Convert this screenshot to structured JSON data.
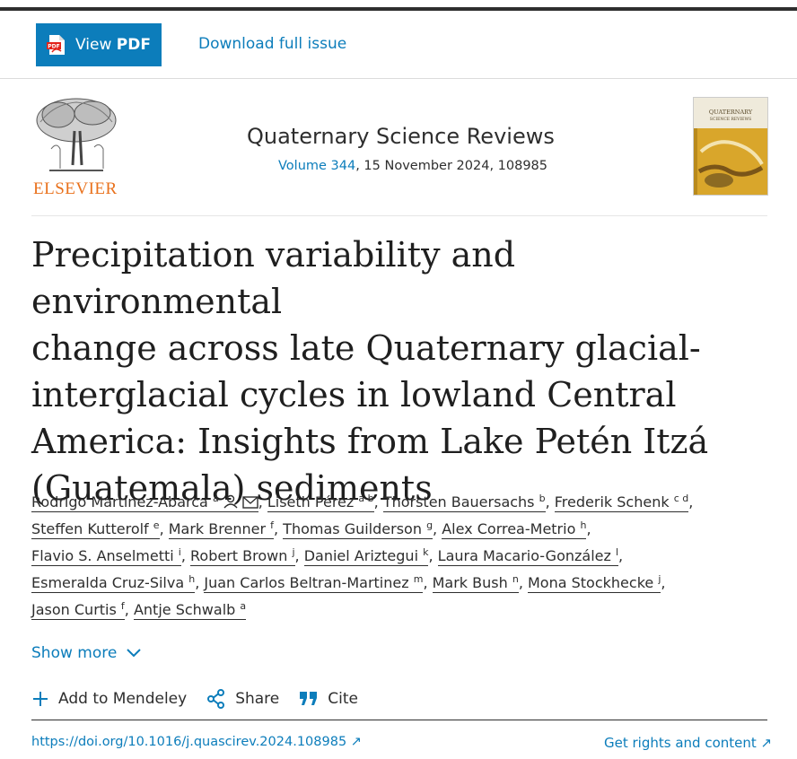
{
  "toolbar": {
    "view_pdf_prefix": "View ",
    "view_pdf_bold": "PDF",
    "download_issue": "Download full issue",
    "pdf_icon": "pdf-file-icon"
  },
  "header": {
    "publisher": "ELSEVIER",
    "journal": "Quaternary Science Reviews",
    "volume_link": "Volume 344",
    "issue_rest": ", 15 November 2024, 108985",
    "cover_title_1": "QUATERNARY",
    "cover_title_2": "SCIENCE REVIEWS"
  },
  "article": {
    "title_lines": [
      "Precipitation variability and environmental",
      "change across late Quaternary glacial-",
      "interglacial cycles in lowland Central",
      "America: Insights from Lake Petén Itzá",
      "(Guatemala) sediments"
    ]
  },
  "authors": [
    {
      "name": "Rodrigo Martínez-Abarca",
      "sup": "a"
    },
    {
      "name": "Liseth Pérez",
      "sup": "a b"
    },
    {
      "name": "Thorsten Bauersachs",
      "sup": "b"
    },
    {
      "name": "Frederik Schenk",
      "sup": "c d"
    },
    {
      "name": "Steffen Kutterolf",
      "sup": "e"
    },
    {
      "name": "Mark Brenner",
      "sup": "f"
    },
    {
      "name": "Thomas Guilderson",
      "sup": "g"
    },
    {
      "name": "Alex Correa-Metrio",
      "sup": "h"
    },
    {
      "name": "Flavio S. Anselmetti",
      "sup": "i"
    },
    {
      "name": "Robert Brown",
      "sup": "j"
    },
    {
      "name": "Daniel Ariztegui",
      "sup": "k"
    },
    {
      "name": "Laura Macario-González",
      "sup": "l"
    },
    {
      "name": "Esmeralda Cruz-Silva",
      "sup": "h"
    },
    {
      "name": "Juan Carlos Beltran-Martinez",
      "sup": "m"
    },
    {
      "name": "Mark Bush",
      "sup": "n"
    },
    {
      "name": "Mona Stockhecke",
      "sup": "j"
    },
    {
      "name": "Jason Curtis",
      "sup": "f"
    },
    {
      "name": "Antje Schwalb",
      "sup": "a"
    }
  ],
  "author_separator": ", ",
  "author_line_breaks_after": [
    3,
    7,
    11,
    15
  ],
  "show_more": "Show more",
  "actions": {
    "mendeley": "Add to Mendeley",
    "share": "Share",
    "cite": "Cite"
  },
  "footer": {
    "doi": "https://doi.org/10.1016/j.quascirev.2024.108985 ↗",
    "rights": "Get rights and content ↗"
  },
  "colors": {
    "link": "#0c7dbb",
    "publisher": "#e9711c",
    "text": "#2e2e2e"
  }
}
